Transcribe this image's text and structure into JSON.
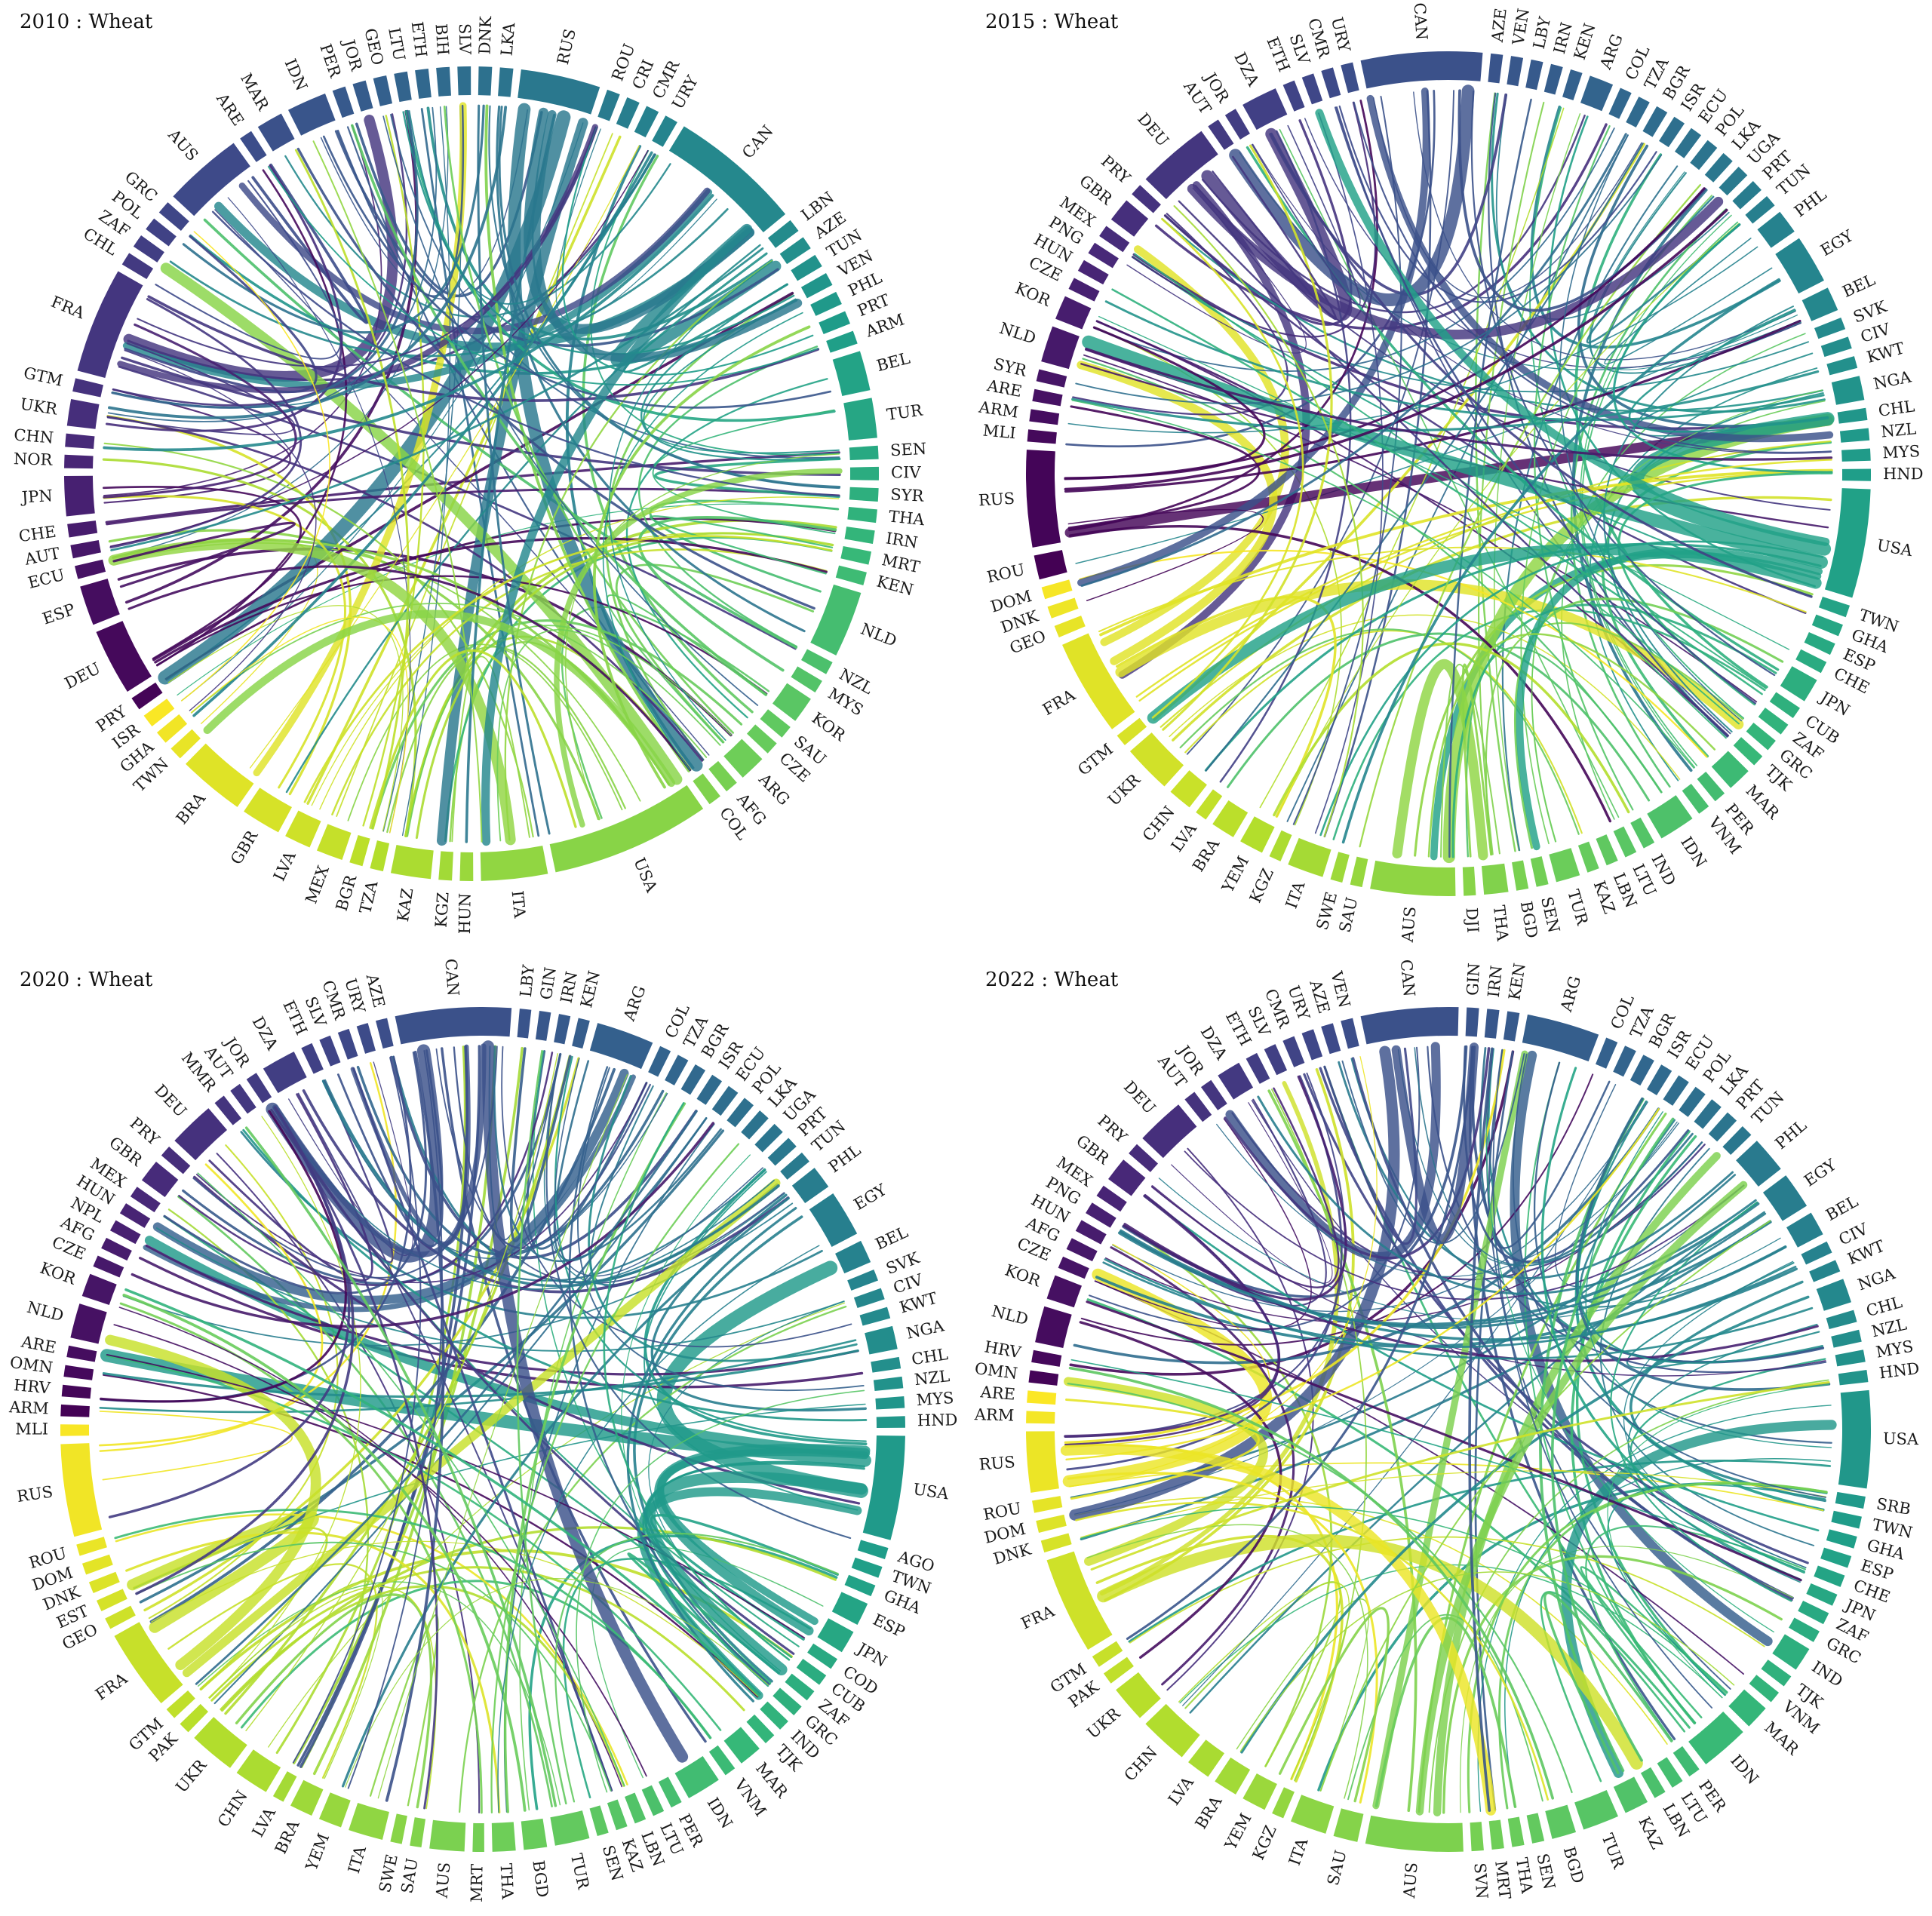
{
  "chart_data": [
    {
      "type": "chord",
      "title": "2010 : Wheat",
      "countries": [
        "RUS",
        "ROU",
        "CRI",
        "CMR",
        "URY",
        "CAN",
        "LBN",
        "AZE",
        "TUN",
        "VEN",
        "PHL",
        "PRT",
        "ARM",
        "BEL",
        "TUR",
        "SEN",
        "CIV",
        "SYR",
        "THA",
        "IRN",
        "MRT",
        "KEN",
        "NLD",
        "NZL",
        "MYS",
        "KOR",
        "SAU",
        "CZE",
        "ARG",
        "AFG",
        "COL",
        "USA",
        "ITA",
        "HUN",
        "KGZ",
        "KAZ",
        "TZA",
        "BGR",
        "MEX",
        "LVA",
        "GBR",
        "BRA",
        "TWN",
        "GHA",
        "ISR",
        "PRY",
        "DEU",
        "ESP",
        "ECU",
        "AUT",
        "CHE",
        "JPN",
        "NOR",
        "CHN",
        "UKR",
        "GTM",
        "FRA",
        "CHL",
        "ZAF",
        "POL",
        "GRC",
        "AUS",
        "ARE",
        "MAR",
        "IDN",
        "PER",
        "JOR",
        "GEO",
        "LTU",
        "ETH",
        "BIH",
        "SLV",
        "DNK",
        "LKA"
      ],
      "weights": [
        6,
        1,
        1,
        1,
        1,
        10,
        1,
        1,
        1,
        1,
        1,
        1,
        1,
        3,
        3,
        1,
        1,
        1,
        1,
        1,
        1,
        1,
        5,
        1,
        1,
        2,
        1,
        1,
        2,
        1,
        1,
        12,
        5,
        1,
        1,
        3,
        1,
        1,
        2,
        2,
        3,
        5,
        1,
        1,
        1,
        1,
        5,
        3,
        1,
        1,
        1,
        3,
        1,
        1,
        2,
        1,
        8,
        1,
        1,
        1,
        1,
        6,
        1,
        2,
        3,
        1,
        1,
        1,
        1,
        1,
        1,
        1,
        1,
        1
      ]
    },
    {
      "type": "chord",
      "title": "2015 : Wheat",
      "countries": [
        "CAN",
        "AZE",
        "VEN",
        "LBY",
        "IRN",
        "KEN",
        "ARG",
        "COL",
        "TZA",
        "BGR",
        "ISR",
        "ECU",
        "POL",
        "LKA",
        "UGA",
        "PRT",
        "TUN",
        "PHL",
        "EGY",
        "BEL",
        "SVK",
        "CIV",
        "KWT",
        "NGA",
        "CHL",
        "NZL",
        "MYS",
        "HND",
        "USA",
        "TWN",
        "GHA",
        "ESP",
        "CHE",
        "JPN",
        "CUB",
        "ZAF",
        "GRC",
        "TJK",
        "MAR",
        "PER",
        "VNM",
        "IDN",
        "IND",
        "LTU",
        "LBN",
        "KAZ",
        "TUR",
        "SEN",
        "BGD",
        "THA",
        "DJI",
        "AUS",
        "SAU",
        "SWE",
        "ITA",
        "KGZ",
        "YEM",
        "BRA",
        "LVA",
        "CHN",
        "UKR",
        "GTM",
        "FRA",
        "GEO",
        "DNK",
        "DOM",
        "ROU",
        "RUS",
        "MLI",
        "ARM",
        "ARE",
        "SYR",
        "NLD",
        "KOR",
        "CZE",
        "HUN",
        "PNG",
        "MEX",
        "GBR",
        "PRY",
        "DEU",
        "AUT",
        "JOR",
        "DZA",
        "ETH",
        "SLV",
        "CMR",
        "URY"
      ],
      "weights": [
        10,
        1,
        1,
        1,
        1,
        1,
        2,
        1,
        1,
        1,
        1,
        1,
        1,
        1,
        1,
        1,
        1,
        2,
        4,
        2,
        1,
        1,
        1,
        2,
        1,
        1,
        1,
        1,
        9,
        1,
        1,
        1,
        1,
        2,
        1,
        1,
        1,
        1,
        2,
        1,
        1,
        3,
        1,
        1,
        1,
        1,
        2,
        1,
        1,
        2,
        1,
        7,
        1,
        1,
        3,
        1,
        2,
        2,
        1,
        2,
        4,
        1,
        8,
        1,
        1,
        1,
        2,
        8,
        1,
        1,
        1,
        1,
        3,
        2,
        1,
        1,
        1,
        1,
        2,
        1,
        6,
        1,
        1,
        3,
        1,
        1,
        1,
        1
      ]
    },
    {
      "type": "chord",
      "title": "2020 : Wheat",
      "countries": [
        "CAN",
        "LBY",
        "GIN",
        "IRN",
        "KEN",
        "ARG",
        "COL",
        "TZA",
        "BGR",
        "ISR",
        "ECU",
        "POL",
        "LKA",
        "UGA",
        "PRT",
        "TUN",
        "PHL",
        "EGY",
        "BEL",
        "SVK",
        "CIV",
        "KWT",
        "NGA",
        "CHL",
        "NZL",
        "MYS",
        "HND",
        "USA",
        "AGO",
        "TWN",
        "GHA",
        "ESP",
        "JPN",
        "COD",
        "CUB",
        "ZAF",
        "GRC",
        "IND",
        "TJK",
        "MAR",
        "VNM",
        "IDN",
        "PER",
        "LTU",
        "LBN",
        "KAZ",
        "SEN",
        "TUR",
        "BGD",
        "THA",
        "MRT",
        "AUS",
        "SAU",
        "SWE",
        "ITA",
        "YEM",
        "BRA",
        "LVA",
        "CHN",
        "UKR",
        "PAK",
        "GTM",
        "FRA",
        "GEO",
        "EST",
        "DNK",
        "DOM",
        "ROU",
        "RUS",
        "MLI",
        "ARM",
        "HRV",
        "OMN",
        "ARE",
        "NLD",
        "KOR",
        "CZE",
        "AFG",
        "NPL",
        "HUN",
        "MEX",
        "GBR",
        "PRY",
        "DEU",
        "MMR",
        "AUT",
        "JOR",
        "DZA",
        "ETH",
        "SLV",
        "CMR",
        "URY",
        "AZE"
      ],
      "weights": [
        10,
        1,
        1,
        1,
        1,
        5,
        1,
        1,
        1,
        1,
        1,
        1,
        1,
        1,
        1,
        1,
        2,
        4,
        2,
        1,
        1,
        1,
        2,
        1,
        1,
        1,
        1,
        9,
        1,
        1,
        1,
        2,
        2,
        1,
        1,
        1,
        1,
        1,
        1,
        2,
        1,
        3,
        1,
        1,
        1,
        1,
        1,
        3,
        2,
        2,
        1,
        3,
        1,
        1,
        3,
        2,
        2,
        1,
        3,
        4,
        1,
        1,
        7,
        1,
        1,
        1,
        1,
        1,
        8,
        1,
        1,
        1,
        1,
        1,
        3,
        2,
        1,
        1,
        1,
        1,
        1,
        2,
        1,
        4,
        1,
        1,
        1,
        3,
        1,
        1,
        1,
        1,
        1
      ]
    },
    {
      "type": "chord",
      "title": "2022 : Wheat",
      "countries": [
        "CAN",
        "GIN",
        "IRN",
        "KEN",
        "ARG",
        "COL",
        "TZA",
        "BGR",
        "ISR",
        "ECU",
        "POL",
        "LKA",
        "PRT",
        "TUN",
        "PHL",
        "EGY",
        "BEL",
        "CIV",
        "KWT",
        "NGA",
        "CHL",
        "NZL",
        "MYS",
        "HND",
        "USA",
        "SRB",
        "TWN",
        "GHA",
        "ESP",
        "CHE",
        "JPN",
        "ZAF",
        "GRC",
        "IND",
        "TJK",
        "VNM",
        "MAR",
        "IDN",
        "PER",
        "LTU",
        "LBN",
        "KAZ",
        "TUR",
        "BGD",
        "SEN",
        "THA",
        "MRT",
        "SVN",
        "AUS",
        "SAU",
        "ITA",
        "KGZ",
        "YEM",
        "BRA",
        "LVA",
        "CHN",
        "UKR",
        "PAK",
        "GTM",
        "FRA",
        "DNK",
        "DOM",
        "ROU",
        "RUS",
        "ARM",
        "ARE",
        "OMN",
        "HRV",
        "NLD",
        "KOR",
        "CZE",
        "AFG",
        "HUN",
        "PNG",
        "MEX",
        "GBR",
        "PRY",
        "DEU",
        "AUT",
        "JOR",
        "DZA",
        "ETH",
        "SLV",
        "CMR",
        "URY",
        "AZE",
        "VEN"
      ],
      "weights": [
        8,
        1,
        1,
        1,
        6,
        1,
        1,
        1,
        1,
        1,
        1,
        1,
        1,
        1,
        3,
        3,
        2,
        1,
        1,
        2,
        1,
        1,
        1,
        1,
        8,
        1,
        1,
        1,
        1,
        1,
        1,
        1,
        1,
        2,
        1,
        1,
        2,
        4,
        1,
        1,
        1,
        2,
        3,
        2,
        1,
        1,
        1,
        1,
        8,
        2,
        3,
        1,
        2,
        2,
        2,
        4,
        3,
        1,
        1,
        8,
        1,
        1,
        1,
        5,
        1,
        1,
        1,
        1,
        3,
        2,
        1,
        1,
        1,
        1,
        1,
        2,
        1,
        4,
        1,
        1,
        2,
        1,
        1,
        1,
        1,
        1,
        1
      ]
    }
  ]
}
